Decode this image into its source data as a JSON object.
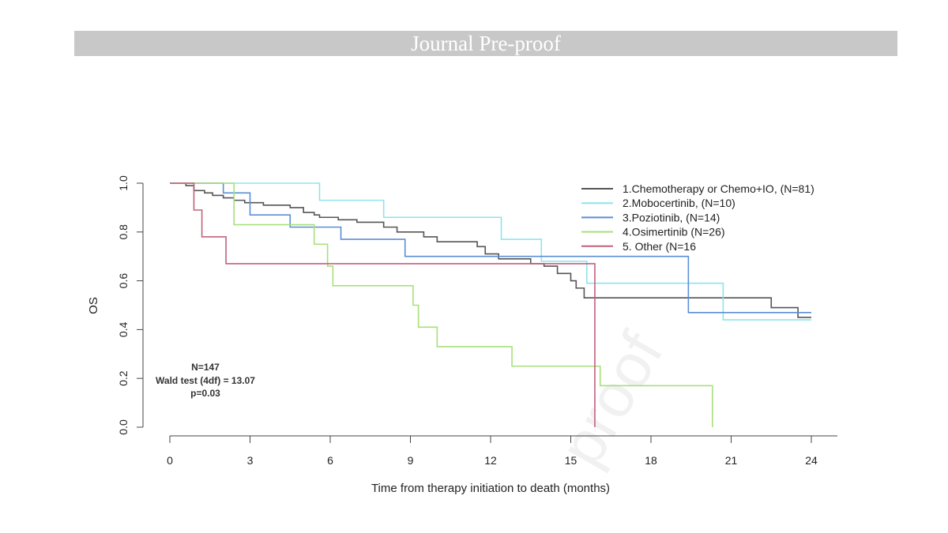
{
  "header": {
    "banner_text": "Journal Pre-proof"
  },
  "watermark": {
    "text": "proof"
  },
  "stats": {
    "n": "N=147",
    "wald": "Wald test  (4df) = 13.07",
    "p": "p=0.03"
  },
  "chart_data": {
    "type": "line",
    "subtype": "kaplan-meier step",
    "xlabel": "Time from therapy initiation to death (months)",
    "ylabel": "OS",
    "xlim": [
      0,
      24
    ],
    "ylim": [
      0,
      1
    ],
    "xticks": [
      0,
      3,
      6,
      9,
      12,
      15,
      18,
      21,
      24
    ],
    "yticks": [
      0.0,
      0.2,
      0.4,
      0.6,
      0.8,
      1.0
    ],
    "ytick_labels": [
      "0.0",
      "0.2",
      "0.4",
      "0.6",
      "0.8",
      "1.0"
    ],
    "legend_position": "top-right",
    "series": [
      {
        "name": "1.Chemotherapy or Chemo+IO, (N=81)",
        "color": "#555555",
        "x": [
          0,
          0.6,
          0.9,
          1.3,
          1.6,
          2.0,
          2.4,
          2.8,
          3.5,
          4.5,
          5.0,
          5.4,
          5.6,
          6.3,
          7.0,
          8.0,
          8.5,
          9.5,
          10.0,
          11.5,
          11.8,
          12.3,
          13.5,
          14.0,
          14.5,
          15.0,
          15.2,
          15.5,
          16.0,
          22.5,
          23.5,
          24.0
        ],
        "y": [
          1.0,
          0.99,
          0.97,
          0.96,
          0.95,
          0.94,
          0.93,
          0.92,
          0.91,
          0.9,
          0.88,
          0.87,
          0.86,
          0.85,
          0.84,
          0.82,
          0.8,
          0.78,
          0.76,
          0.74,
          0.71,
          0.69,
          0.67,
          0.66,
          0.63,
          0.6,
          0.57,
          0.53,
          0.53,
          0.49,
          0.45,
          0.45
        ]
      },
      {
        "name": "2.Mobocertinib, (N=10)",
        "color": "#8fe3ef",
        "x": [
          0,
          5.6,
          8.0,
          12.4,
          13.9,
          15.6,
          20.7,
          24.0
        ],
        "y": [
          1.0,
          0.93,
          0.86,
          0.77,
          0.68,
          0.59,
          0.44,
          0.44
        ]
      },
      {
        "name": "3.Poziotinib,  (N=14)",
        "color": "#5b8ed6",
        "x": [
          0,
          2.0,
          3.0,
          4.5,
          6.4,
          8.8,
          19.4,
          24.0
        ],
        "y": [
          1.0,
          0.96,
          0.87,
          0.82,
          0.77,
          0.7,
          0.47,
          0.47
        ]
      },
      {
        "name": "4.Osimertinib (N=26)",
        "color": "#a8e07a",
        "x": [
          0,
          2.4,
          5.4,
          5.9,
          6.1,
          9.1,
          9.3,
          10.0,
          12.8,
          16.1,
          20.3
        ],
        "y": [
          1.0,
          0.83,
          0.75,
          0.66,
          0.58,
          0.5,
          0.41,
          0.33,
          0.25,
          0.17,
          0.0
        ]
      },
      {
        "name": "5. Other (N=16",
        "color": "#c0627b",
        "x": [
          0,
          0.9,
          1.2,
          2.1,
          15.9
        ],
        "y": [
          1.0,
          0.89,
          0.78,
          0.67,
          0.0
        ]
      }
    ]
  }
}
